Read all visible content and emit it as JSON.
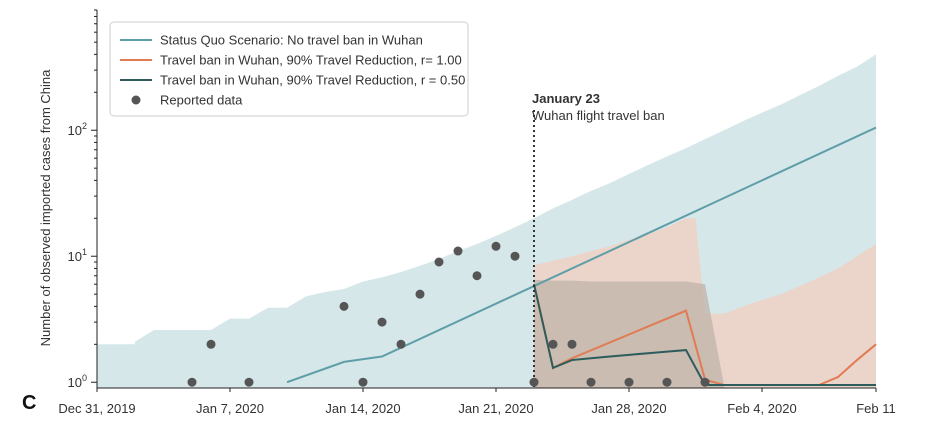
{
  "panel_letter": "C",
  "chart_data": {
    "type": "line",
    "ylabel": "Number of observed imported cases from China",
    "xlabel": "",
    "x_ticks": [
      "Dec 31, 2019",
      "Jan 7, 2020",
      "Jan 14, 2020",
      "Jan 21, 2020",
      "Jan 28, 2020",
      "Feb 4, 2020",
      "Feb 11"
    ],
    "x_range_days": [
      0,
      41
    ],
    "y_scale": "log",
    "y_ticks": [
      1,
      10,
      100
    ],
    "y_tick_labels": [
      "10^0",
      "10^1",
      "10^2"
    ],
    "ylim": [
      0.9,
      900
    ],
    "legend_position": "top-left",
    "annotation": {
      "day": 23,
      "title": "January 23",
      "subtitle": "Wuhan flight travel ban"
    },
    "series": [
      {
        "name": "Status Quo Scenario: No travel ban in Wuhan",
        "color": "#5f9ea8",
        "x": [
          10,
          13,
          15,
          41
        ],
        "y": [
          1.0,
          1.45,
          1.6,
          105
        ],
        "band_color": "#cfe3e6",
        "band_x": [
          0,
          2,
          2,
          3,
          6,
          7,
          8,
          9,
          10,
          11,
          12,
          13,
          14,
          15,
          16,
          17,
          18,
          19,
          20,
          21,
          22,
          23,
          24,
          25,
          26,
          27,
          28,
          29,
          30,
          31,
          32,
          33,
          34,
          35,
          36,
          37,
          38,
          39,
          40,
          41
        ],
        "band_upper": [
          2.0,
          2.0,
          2.1,
          2.6,
          2.6,
          3.2,
          3.2,
          3.9,
          3.9,
          4.8,
          5.2,
          5.5,
          6.3,
          6.8,
          7.5,
          8.4,
          9.5,
          11.0,
          12.5,
          14.5,
          17,
          20,
          24,
          28,
          33,
          38,
          45,
          53,
          62,
          72,
          85,
          100,
          118,
          138,
          160,
          190,
          225,
          270,
          320,
          400
        ],
        "band_lower": [
          0.9,
          0.9,
          0.9,
          0.9,
          0.9,
          0.9,
          0.9,
          0.9,
          0.9,
          0.9,
          0.9,
          0.9,
          0.9,
          0.9,
          0.9,
          0.9,
          0.9,
          0.9,
          0.9,
          0.9,
          0.9,
          0.9,
          0.9,
          0.9,
          0.9,
          0.9,
          0.9,
          0.9,
          0.9,
          0.9,
          0.9,
          0.9,
          0.9,
          0.9,
          0.9,
          0.9,
          0.9,
          0.9,
          0.9,
          0.9
        ]
      },
      {
        "name": "Travel ban in Wuhan, 90% Travel Reduction, r= 1.00",
        "color": "#e07b53",
        "x": [
          23,
          24,
          25,
          31,
          32,
          33,
          38,
          39,
          40,
          41
        ],
        "y": [
          6.0,
          1.3,
          1.55,
          3.7,
          1.05,
          0.95,
          0.95,
          1.1,
          1.5,
          2.0
        ],
        "band_color": "#f2cfc0",
        "band_x": [
          23,
          24,
          25,
          26,
          27,
          28,
          29,
          30,
          31,
          31.5,
          32,
          33,
          34,
          35,
          36,
          37,
          38,
          39,
          40,
          41
        ],
        "band_upper": [
          8.5,
          9.2,
          10,
          11,
          12,
          13.5,
          15,
          17,
          20,
          20,
          3.5,
          3.5,
          4.0,
          4.5,
          5.0,
          5.8,
          6.8,
          8.0,
          10,
          12.5
        ],
        "band_lower": [
          0.9,
          0.9,
          0.9,
          0.9,
          0.9,
          0.9,
          0.9,
          0.9,
          0.9,
          0.9,
          0.9,
          0.9,
          0.9,
          0.9,
          0.9,
          0.9,
          0.9,
          0.9,
          0.9,
          0.9
        ]
      },
      {
        "name": "Travel ban in Wuhan, 90% Travel Reduction, r = 0.50",
        "color": "#2e5c5c",
        "x": [
          23,
          24,
          25,
          26,
          27,
          28,
          29,
          30,
          31,
          32,
          33,
          41
        ],
        "y": [
          6.0,
          1.3,
          1.5,
          1.55,
          1.6,
          1.65,
          1.7,
          1.75,
          1.8,
          0.95,
          0.95,
          0.95
        ],
        "band_color": "#bfb3a8",
        "band_x": [
          23,
          24,
          25,
          26,
          27,
          28,
          29,
          30,
          31,
          32,
          33
        ],
        "band_upper": [
          6.5,
          6.4,
          6.4,
          6.3,
          6.3,
          6.3,
          6.3,
          6.3,
          6.3,
          6.0,
          0.95
        ],
        "band_lower": [
          0.9,
          0.9,
          0.9,
          0.9,
          0.9,
          0.9,
          0.9,
          0.9,
          0.9,
          0.9,
          0.9
        ]
      },
      {
        "name": "Reported data",
        "color": "#555555",
        "marker": "dot",
        "x": [
          5,
          6,
          8,
          13,
          14,
          15,
          16,
          17,
          18,
          19,
          20,
          21,
          22,
          23,
          24,
          25,
          26,
          28,
          30,
          32
        ],
        "y": [
          1,
          2,
          1,
          4,
          1,
          3,
          2,
          5,
          9,
          11,
          7,
          12,
          10,
          1,
          2,
          2,
          1,
          1,
          1,
          1
        ]
      }
    ]
  }
}
